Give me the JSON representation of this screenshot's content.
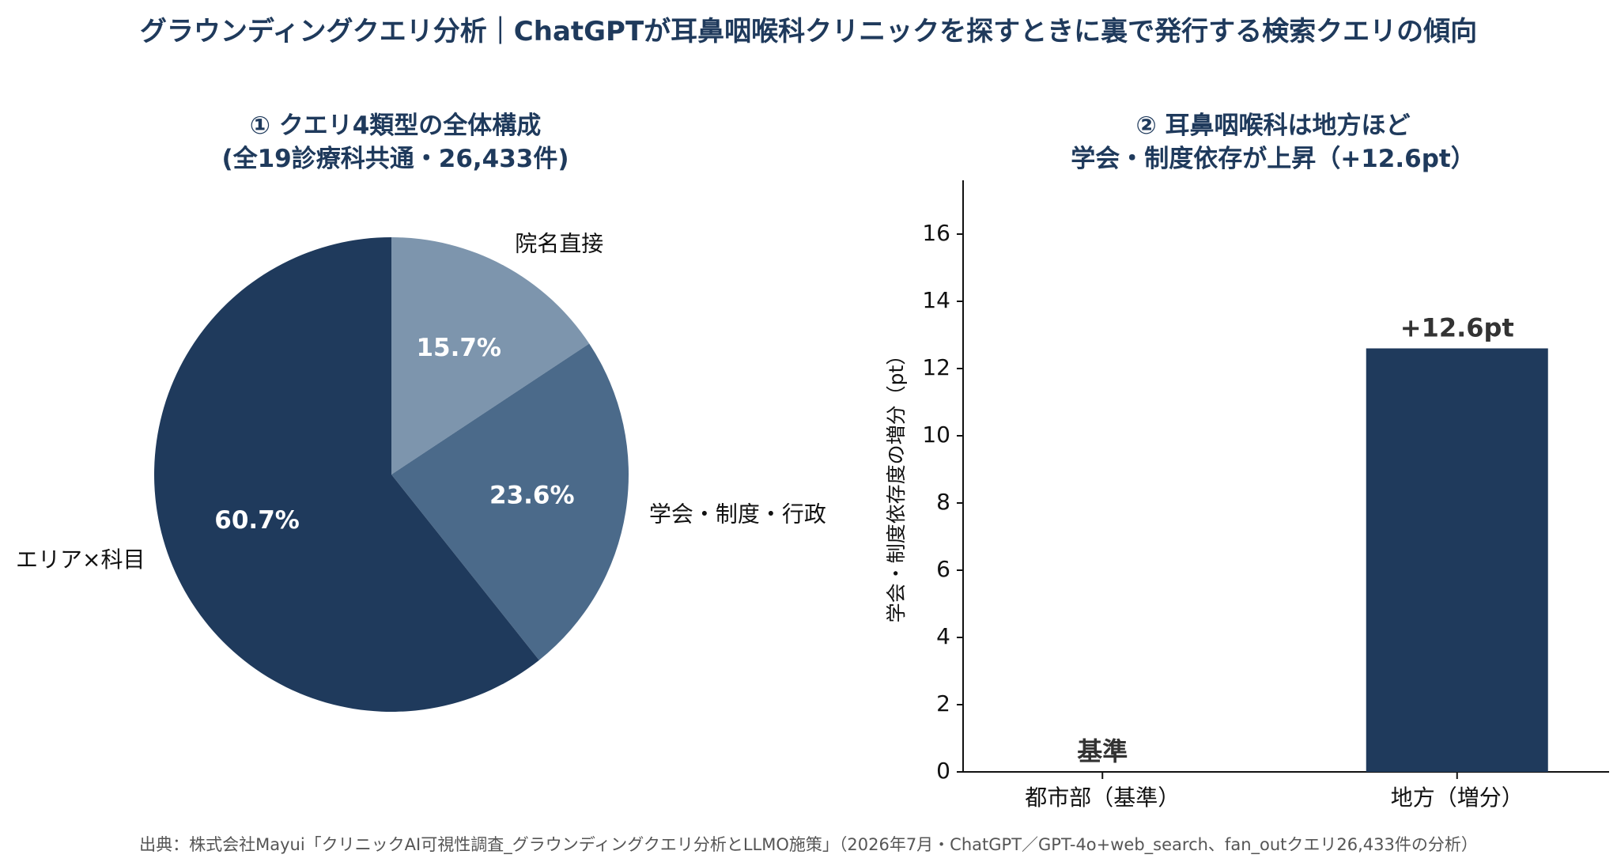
{
  "main_title": "グラウンディングクエリ分析｜ChatGPTが耳鼻咽喉科クリニックを探すときに裏で発行する検索クエリの傾向",
  "source": "出典：株式会社Mayui「クリニックAI可視性調査_グラウンディングクエリ分析とLLMO施策」（2026年7月・ChatGPT／GPT-4o+web_search、fan_outクエリ26,433件の分析）",
  "colors": {
    "navy": "#1f3a5c",
    "mid": "#4b6a8a",
    "light": "#7d95ad"
  },
  "chart_data": [
    {
      "type": "pie",
      "title_lines": [
        "① クエリ4類型の全体構成",
        "(全19診療科共通・26,433件)"
      ],
      "start": "top",
      "direction": "clockwise",
      "slices": [
        {
          "label": "院名直接",
          "value": 15.7,
          "value_label": "15.7%",
          "color": "#7d95ad"
        },
        {
          "label": "学会・制度・行政",
          "value": 23.6,
          "value_label": "23.6%",
          "color": "#4b6a8a"
        },
        {
          "label": "エリア×科目",
          "value": 60.7,
          "value_label": "60.7%",
          "color": "#1f3a5c"
        }
      ]
    },
    {
      "type": "bar",
      "title_lines": [
        "② 耳鼻咽喉科は地方ほど",
        "学会・制度依存が上昇（+12.6pt）"
      ],
      "categories": [
        "都市部（基準）",
        "地方（増分）"
      ],
      "values": [
        0,
        12.6
      ],
      "value_labels": [
        "基準",
        "+12.6pt"
      ],
      "ylabel": "学会・制度依存度の増分（pt）",
      "ylim": [
        0,
        17.6
      ],
      "yticks": [
        0,
        2,
        4,
        6,
        8,
        10,
        12,
        14,
        16
      ],
      "bar_color": "#1f3a5c",
      "grid": false
    }
  ]
}
